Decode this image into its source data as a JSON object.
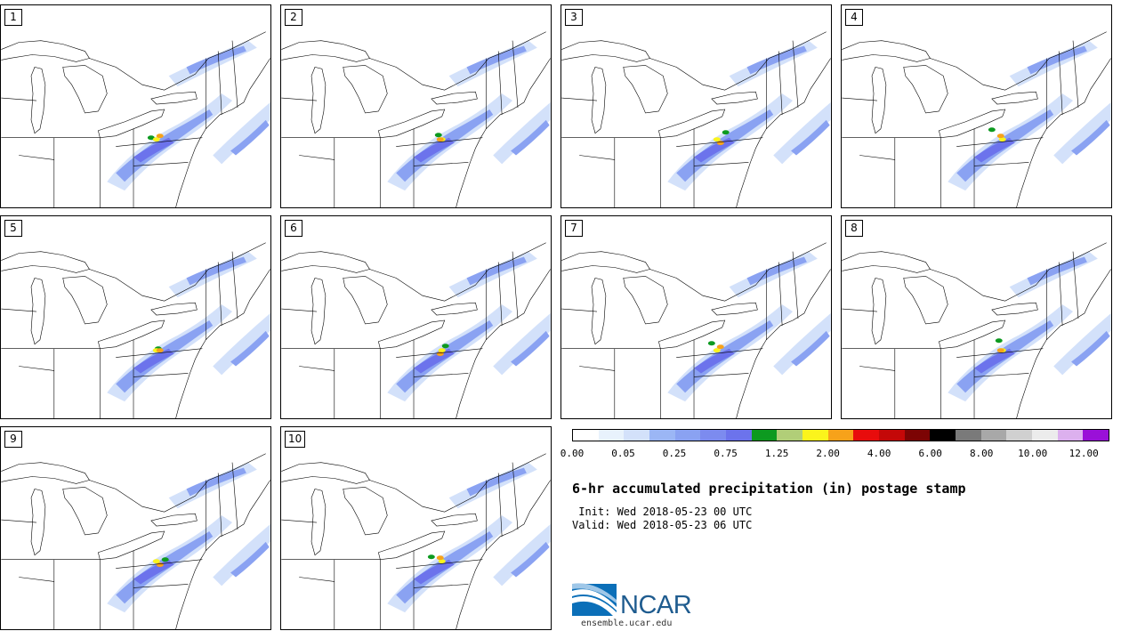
{
  "panels": [
    {
      "label": "1"
    },
    {
      "label": "2"
    },
    {
      "label": "3"
    },
    {
      "label": "4"
    },
    {
      "label": "5"
    },
    {
      "label": "6"
    },
    {
      "label": "7"
    },
    {
      "label": "8"
    },
    {
      "label": "9"
    },
    {
      "label": "10"
    }
  ],
  "legend": {
    "colors": [
      "#ffffff",
      "#e8f2fc",
      "#d3e1fa",
      "#9bb6f5",
      "#8aa2f2",
      "#7c8bef",
      "#6c73ec",
      "#0d9a20",
      "#b1ce78",
      "#fbf41c",
      "#f7a21a",
      "#e80c0c",
      "#c40808",
      "#7c0404",
      "#000000",
      "#7a7a7a",
      "#a8a8a8",
      "#d0d0d0",
      "#ececec",
      "#dcb0ee",
      "#9a10d8"
    ],
    "ticks": [
      "0.00",
      "0.05",
      "0.25",
      "0.75",
      "1.25",
      "2.00",
      "4.00",
      "6.00",
      "8.00",
      "10.00",
      "12.00"
    ]
  },
  "title": "6-hr accumulated precipitation (in) postage stamp",
  "init": " Init: Wed 2018-05-23 00 UTC",
  "valid": "Valid: Wed 2018-05-23 06 UTC",
  "logo": {
    "name": "NCAR",
    "url": "ensemble.ucar.edu"
  }
}
